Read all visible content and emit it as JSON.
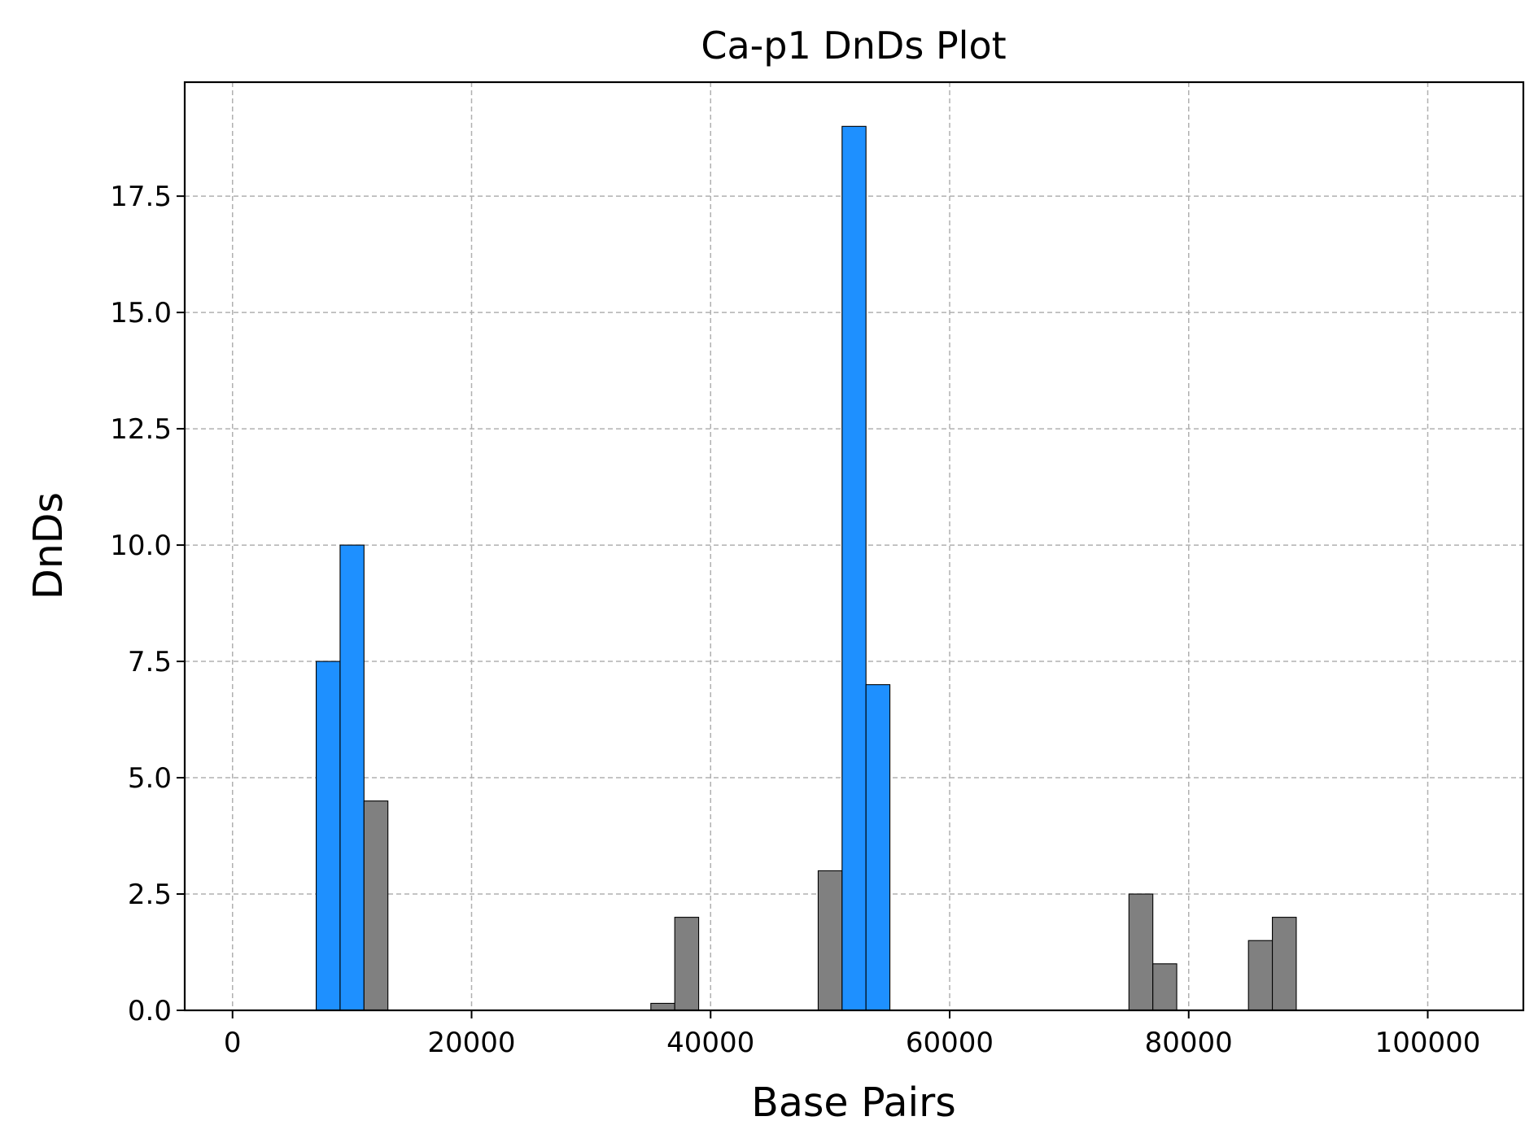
{
  "chart_data": {
    "type": "bar",
    "title": "Ca-p1 DnDs Plot",
    "xlabel": "Base Pairs",
    "ylabel": "DnDs",
    "xlim": [
      -4000,
      108000
    ],
    "ylim": [
      0,
      19.95
    ],
    "xticks": [
      0,
      20000,
      40000,
      60000,
      80000,
      100000
    ],
    "yticks": [
      0.0,
      2.5,
      5.0,
      7.5,
      10.0,
      12.5,
      15.0,
      17.5
    ],
    "xtick_labels": [
      "0",
      "20000",
      "40000",
      "60000",
      "80000",
      "100000"
    ],
    "ytick_labels": [
      "0.0",
      "2.5",
      "5.0",
      "7.5",
      "10.0",
      "12.5",
      "15.0",
      "17.5"
    ],
    "grid": true,
    "bin_width": 2000,
    "colors": {
      "highlight": "#1e90ff",
      "normal": "#808080"
    },
    "bars": [
      {
        "x": 8000,
        "value": 7.5,
        "group": "highlight"
      },
      {
        "x": 10000,
        "value": 10.0,
        "group": "highlight"
      },
      {
        "x": 12000,
        "value": 4.5,
        "group": "normal"
      },
      {
        "x": 36000,
        "value": 0.15,
        "group": "normal"
      },
      {
        "x": 38000,
        "value": 2.0,
        "group": "normal"
      },
      {
        "x": 50000,
        "value": 3.0,
        "group": "normal"
      },
      {
        "x": 52000,
        "value": 19.0,
        "group": "highlight"
      },
      {
        "x": 54000,
        "value": 7.0,
        "group": "highlight"
      },
      {
        "x": 76000,
        "value": 2.5,
        "group": "normal"
      },
      {
        "x": 78000,
        "value": 1.0,
        "group": "normal"
      },
      {
        "x": 86000,
        "value": 1.5,
        "group": "normal"
      },
      {
        "x": 88000,
        "value": 2.0,
        "group": "normal"
      }
    ]
  }
}
